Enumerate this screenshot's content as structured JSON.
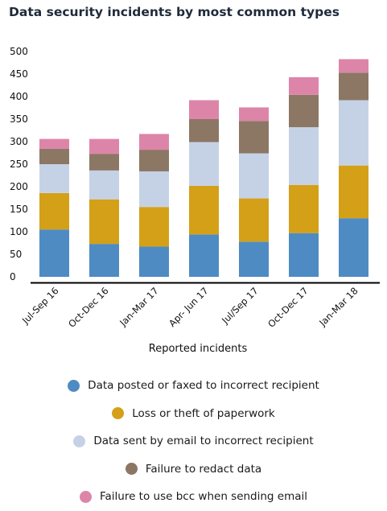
{
  "chart_data": {
    "type": "bar",
    "stacked": true,
    "title": "Data security incidents by most common types",
    "xlabel": "Reported incidents",
    "ylabel": "",
    "ylim": [
      0,
      500
    ],
    "yticks": [
      0,
      50,
      100,
      150,
      200,
      250,
      300,
      350,
      400,
      450,
      500
    ],
    "grid": false,
    "legend_position": "bottom",
    "categories": [
      "Jul-Sep 16",
      "Oct-Dec 16",
      "Jan-Mar 17",
      "Apr- Jun 17",
      "Jul/Sep 17",
      "Oct-Dec 17",
      "Jan-Mar 18"
    ],
    "series": [
      {
        "name": "Data posted or faxed to incorrect recipient",
        "color": "#4e8bc3",
        "values": [
          105,
          73,
          67,
          94,
          78,
          97,
          130
        ]
      },
      {
        "name": "Loss or theft of paperwork",
        "color": "#d4a017",
        "values": [
          81,
          99,
          88,
          108,
          96,
          107,
          117
        ]
      },
      {
        "name": "Data sent by email to incorrect recipient",
        "color": "#c5d2e6",
        "values": [
          64,
          64,
          79,
          97,
          100,
          128,
          145
        ]
      },
      {
        "name": "Failure to redact data",
        "color": "#8c7765",
        "values": [
          34,
          37,
          48,
          51,
          72,
          72,
          61
        ]
      },
      {
        "name": "Failure to use bcc when sending email",
        "color": "#dd85a8",
        "values": [
          22,
          33,
          35,
          42,
          30,
          39,
          30
        ]
      }
    ]
  }
}
